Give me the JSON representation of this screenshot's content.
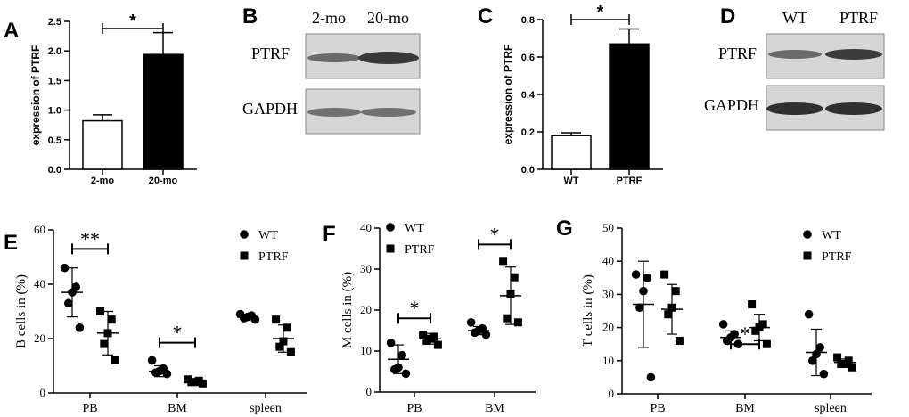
{
  "chart_data": [
    {
      "id": "A",
      "type": "bar",
      "panel_label": "A",
      "categories": [
        "2-mo",
        "20-mo"
      ],
      "values": [
        0.82,
        1.94
      ],
      "errors": [
        0.1,
        0.37
      ],
      "fills": [
        "#ffffff",
        "#000000"
      ],
      "ylabel": "expression of PTRF",
      "ylim": [
        0,
        2.5
      ],
      "yticks": [
        0,
        0.5,
        1,
        1.5,
        2,
        2.5
      ],
      "ytick_labels": [
        "0.0",
        "0.5",
        "1.0",
        "1.5",
        "2.0",
        "2.5"
      ],
      "significance": [
        {
          "from": 0,
          "to": 1,
          "y": 2.38,
          "label": "*"
        }
      ]
    },
    {
      "id": "C",
      "type": "bar",
      "panel_label": "C",
      "categories": [
        "WT",
        "PTRF"
      ],
      "values": [
        0.18,
        0.67
      ],
      "errors": [
        0.015,
        0.08
      ],
      "fills": [
        "#ffffff",
        "#000000"
      ],
      "ylabel": "expression of PTRF",
      "ylim": [
        0,
        0.8
      ],
      "yticks": [
        0,
        0.2,
        0.4,
        0.6,
        0.8
      ],
      "ytick_labels": [
        "0.0",
        "0.2",
        "0.4",
        "0.6",
        "0.8"
      ],
      "significance": [
        {
          "from": 0,
          "to": 1,
          "y": 0.8,
          "label": "*"
        }
      ]
    },
    {
      "id": "E",
      "type": "scatter",
      "panel_label": "E",
      "categories": [
        "PB",
        "BM",
        "spleen"
      ],
      "ylabel": "B cells in (%)",
      "ylim": [
        0,
        60
      ],
      "yticks": [
        0,
        20,
        40,
        60
      ],
      "ytick_labels": [
        "0",
        "20",
        "40",
        "60"
      ],
      "legend": [
        "WT",
        "PTRF"
      ],
      "series": [
        {
          "name": "WT",
          "marker": "circle",
          "groups": [
            {
              "cat": 0,
              "points": [
                46,
                39,
                37,
                33,
                24
              ],
              "mean": 37,
              "sd": 9
            },
            {
              "cat": 1,
              "points": [
                12,
                9,
                8,
                7.5,
                7
              ],
              "mean": 8,
              "sd": 2
            },
            {
              "cat": 2,
              "points": [
                29,
                28.5,
                28,
                27.5,
                27
              ],
              "mean": 28,
              "sd": 1
            }
          ]
        },
        {
          "name": "PTRF",
          "marker": "square",
          "groups": [
            {
              "cat": 0,
              "points": [
                30,
                27,
                22,
                18,
                12
              ],
              "mean": 22,
              "sd": 8
            },
            {
              "cat": 1,
              "points": [
                5,
                4.5,
                4,
                4,
                3.5
              ],
              "mean": 4,
              "sd": 1
            },
            {
              "cat": 2,
              "points": [
                27,
                24,
                19,
                17,
                15
              ],
              "mean": 20,
              "sd": 5
            }
          ]
        }
      ],
      "significance": [
        {
          "cat": 0,
          "y": 53,
          "label": "**"
        },
        {
          "cat": 1,
          "y": 18.5,
          "label": "*"
        }
      ]
    },
    {
      "id": "F",
      "type": "scatter",
      "panel_label": "F",
      "categories": [
        "PB",
        "BM"
      ],
      "ylabel": "M cells in (%)",
      "ylim": [
        0,
        40
      ],
      "yticks": [
        0,
        10,
        20,
        30,
        40
      ],
      "ytick_labels": [
        "0",
        "10",
        "20",
        "30",
        "40"
      ],
      "legend": [
        "WT",
        "PTRF"
      ],
      "series": [
        {
          "name": "WT",
          "marker": "circle",
          "groups": [
            {
              "cat": 0,
              "points": [
                12,
                9,
                6,
                5.5,
                4.5
              ],
              "mean": 8,
              "sd": 3.5
            },
            {
              "cat": 1,
              "points": [
                17,
                15.5,
                15,
                14.5,
                14
              ],
              "mean": 15,
              "sd": 1
            }
          ]
        },
        {
          "name": "PTRF",
          "marker": "square",
          "groups": [
            {
              "cat": 0,
              "points": [
                14,
                13.5,
                13,
                12.5,
                11.5
              ],
              "mean": 13,
              "sd": 1.3
            },
            {
              "cat": 1,
              "points": [
                32,
                28,
                24,
                18,
                17
              ],
              "mean": 23.5,
              "sd": 7
            }
          ]
        }
      ],
      "significance": [
        {
          "cat": 0,
          "y": 18,
          "label": "*"
        },
        {
          "cat": 1,
          "y": 36,
          "label": "*"
        }
      ]
    },
    {
      "id": "G",
      "type": "scatter",
      "panel_label": "G",
      "categories": [
        "PB",
        "BM",
        "spleen"
      ],
      "ylabel": "T cells in (%)",
      "ylim": [
        0,
        50
      ],
      "yticks": [
        0,
        10,
        20,
        30,
        40,
        50
      ],
      "ytick_labels": [
        "0",
        "10",
        "20",
        "30",
        "40",
        "50"
      ],
      "legend": [
        "WT",
        "PTRF"
      ],
      "series": [
        {
          "name": "WT",
          "marker": "circle",
          "groups": [
            {
              "cat": 0,
              "points": [
                36,
                35,
                31,
                26,
                5
              ],
              "mean": 27,
              "sd": 13
            },
            {
              "cat": 1,
              "points": [
                21,
                18,
                17,
                16,
                15
              ],
              "mean": 17,
              "sd": 2
            },
            {
              "cat": 2,
              "points": [
                24,
                14,
                12,
                10,
                6
              ],
              "mean": 12.5,
              "sd": 7
            }
          ]
        },
        {
          "name": "PTRF",
          "marker": "square",
          "groups": [
            {
              "cat": 0,
              "points": [
                36,
                31,
                26,
                24,
                16
              ],
              "mean": 25.5,
              "sd": 7.5
            },
            {
              "cat": 1,
              "points": [
                27,
                21,
                20,
                19,
                15
              ],
              "mean": 20,
              "sd": 4
            },
            {
              "cat": 2,
              "points": [
                11,
                10,
                9,
                9,
                8
              ],
              "mean": 9.5,
              "sd": 1
            }
          ]
        }
      ],
      "significance": [
        {
          "cat": 1,
          "y": 15,
          "label": "*"
        }
      ]
    }
  ],
  "blots": [
    {
      "id": "B",
      "panel_label": "B",
      "lanes": [
        "2-mo",
        "20-mo"
      ],
      "rows": [
        "PTRF",
        "GAPDH"
      ]
    },
    {
      "id": "D",
      "panel_label": "D",
      "lanes": [
        "WT",
        "PTRF"
      ],
      "rows": [
        "PTRF",
        "GAPDH"
      ]
    }
  ]
}
